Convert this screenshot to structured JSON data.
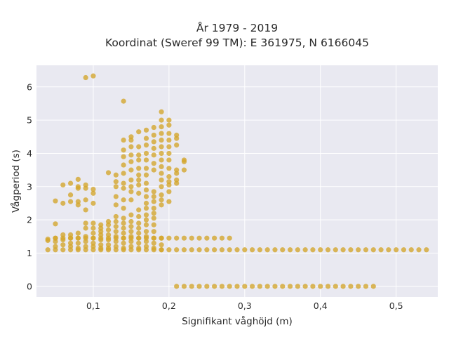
{
  "chart_data": {
    "type": "scatter",
    "title": [
      "År 1979 - 2019",
      "Koordinat (Sweref 99 TM): E 361975, N 6166045"
    ],
    "xlabel": "Signifikant våghöjd (m)",
    "ylabel": "Vågperiod (s)",
    "xlim": [
      0.025,
      0.555
    ],
    "ylim": [
      -0.32,
      6.65
    ],
    "x_ticks": [
      0.1,
      0.2,
      0.3,
      0.4,
      0.5
    ],
    "x_tick_labels": [
      "0,1",
      "0,2",
      "0,3",
      "0,4",
      "0,5"
    ],
    "y_ticks": [
      0,
      1,
      2,
      3,
      4,
      5,
      6
    ],
    "y_tick_labels": [
      "0",
      "1",
      "2",
      "3",
      "4",
      "5",
      "6"
    ],
    "grid": true,
    "legend": "none",
    "colors": {
      "marker": "#d4a52a",
      "plot_bg": "#e9e9f1",
      "grid": "#ffffff"
    },
    "series": [
      {
        "band_low": {
          "x_start": 0.21,
          "x_end": 0.47,
          "x_step": 0.01,
          "y": 0.0
        },
        "band_mid": {
          "x_start": 0.04,
          "x_end": 0.54,
          "x_step": 0.01,
          "y": 1.1
        },
        "band_upper": {
          "x_start": 0.05,
          "x_end": 0.28,
          "x_step": 0.01,
          "y": 1.45
        },
        "columns": [
          {
            "x": 0.04,
            "y": [
              1.38,
              1.42
            ]
          },
          {
            "x": 0.05,
            "y": [
              1.2,
              1.35,
              1.45,
              1.88,
              2.57
            ]
          },
          {
            "x": 0.06,
            "y": [
              1.25,
              1.4,
              1.55,
              2.5,
              3.05
            ]
          },
          {
            "x": 0.07,
            "y": [
              1.2,
              1.3,
              1.45,
              1.55,
              2.55,
              2.75,
              3.1
            ]
          },
          {
            "x": 0.08,
            "y": [
              1.15,
              1.3,
              1.45,
              1.6,
              2.45,
              2.55,
              2.95,
              3.0,
              3.22
            ]
          },
          {
            "x": 0.09,
            "y": [
              1.2,
              1.35,
              1.5,
              1.75,
              1.9,
              2.3,
              2.6,
              2.95,
              3.05,
              6.28
            ]
          },
          {
            "x": 0.1,
            "y": [
              1.2,
              1.3,
              1.45,
              1.6,
              1.75,
              1.9,
              2.5,
              2.8,
              2.92,
              6.33
            ]
          },
          {
            "x": 0.11,
            "y": [
              1.15,
              1.25,
              1.4,
              1.55,
              1.65,
              1.75,
              1.85
            ]
          },
          {
            "x": 0.12,
            "y": [
              1.15,
              1.25,
              1.4,
              1.55,
              1.7,
              1.85,
              1.95,
              3.42
            ]
          },
          {
            "x": 0.13,
            "y": [
              1.2,
              1.35,
              1.5,
              1.65,
              1.8,
              1.95,
              2.1,
              2.45,
              2.7,
              3.0,
              3.15,
              3.35
            ]
          },
          {
            "x": 0.14,
            "y": [
              1.15,
              1.3,
              1.45,
              1.6,
              1.75,
              1.9,
              2.05,
              2.35,
              2.6,
              2.95,
              3.1,
              3.4,
              3.65,
              3.9,
              4.1,
              4.4,
              5.57
            ]
          },
          {
            "x": 0.15,
            "y": [
              1.2,
              1.35,
              1.5,
              1.65,
              1.8,
              1.95,
              2.15,
              2.6,
              2.85,
              3.0,
              3.2,
              3.5,
              3.75,
              3.95,
              4.2,
              4.4,
              4.5
            ]
          },
          {
            "x": 0.16,
            "y": [
              1.15,
              1.3,
              1.45,
              1.6,
              1.75,
              1.9,
              2.1,
              2.3,
              2.8,
              3.05,
              3.2,
              3.35,
              3.55,
              3.8,
              3.95,
              4.2,
              4.65
            ]
          },
          {
            "x": 0.17,
            "y": [
              1.2,
              1.35,
              1.5,
              1.65,
              1.85,
              2.0,
              2.15,
              2.35,
              2.5,
              2.7,
              2.9,
              3.1,
              3.35,
              3.55,
              3.8,
              4.0,
              4.25,
              4.45,
              4.7
            ]
          },
          {
            "x": 0.18,
            "y": [
              1.15,
              1.3,
              1.45,
              1.65,
              1.85,
              2.05,
              2.2,
              2.35,
              2.55,
              2.7,
              2.85,
              3.5,
              3.7,
              3.95,
              4.15,
              4.35,
              4.55,
              4.78
            ]
          },
          {
            "x": 0.19,
            "y": [
              1.1,
              1.25,
              1.45,
              2.45,
              2.6,
              2.75,
              3.0,
              3.2,
              3.4,
              3.6,
              3.8,
              4.0,
              4.2,
              4.4,
              4.6,
              4.8,
              5.0,
              5.25
            ]
          },
          {
            "x": 0.2,
            "y": [
              2.55,
              2.85,
              3.05,
              3.15,
              3.3,
              3.55,
              3.8,
              4.0,
              4.2,
              4.4,
              4.6,
              4.85,
              5.0
            ]
          },
          {
            "x": 0.21,
            "y": [
              3.1,
              3.2,
              3.4,
              3.5,
              4.25,
              4.45,
              4.55
            ]
          },
          {
            "x": 0.22,
            "y": [
              3.5,
              3.75,
              3.8
            ]
          }
        ]
      }
    ]
  }
}
